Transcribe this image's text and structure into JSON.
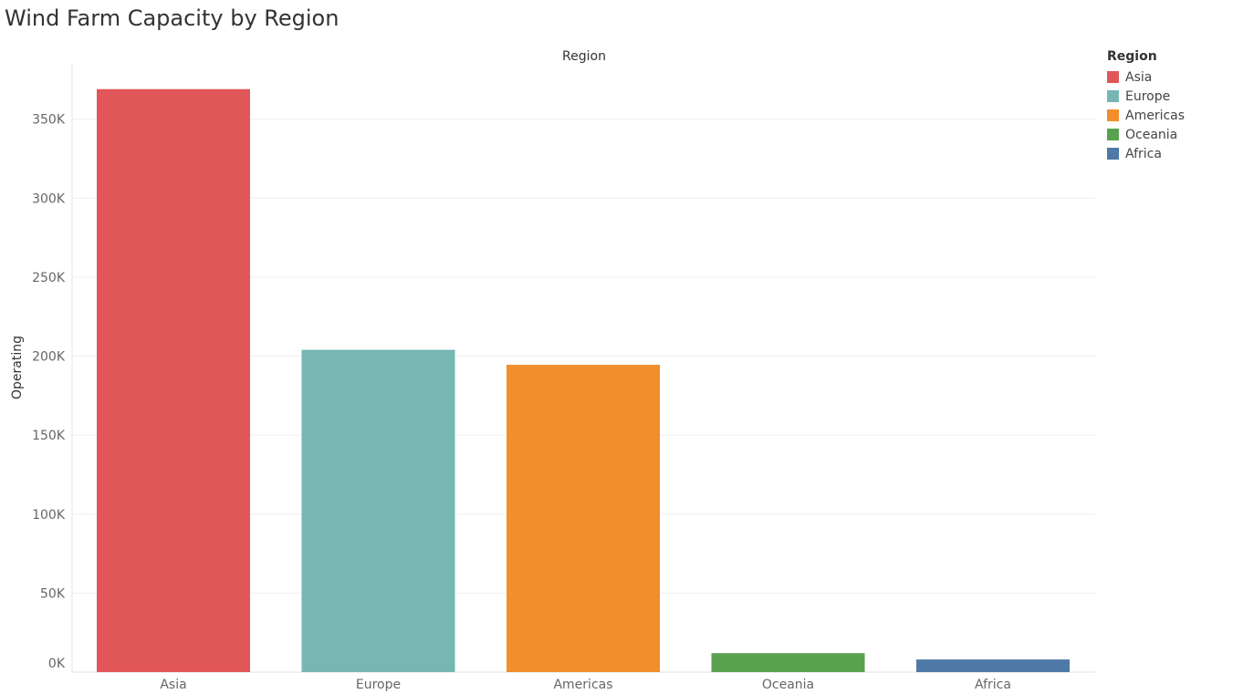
{
  "chart_data": {
    "type": "bar",
    "title": "Wind Farm Capacity by Region",
    "header_label": "Region",
    "xlabel": "",
    "ylabel": "Operating",
    "categories": [
      "Asia",
      "Europe",
      "Americas",
      "Oceania",
      "Africa"
    ],
    "values": [
      369000,
      204000,
      194500,
      12000,
      8000
    ],
    "colors": [
      "#E15759",
      "#76B7B2",
      "#F28E2B",
      "#59A14F",
      "#4E79A7"
    ],
    "ylim": [
      0,
      385000
    ],
    "yticks": [
      0,
      50000,
      100000,
      150000,
      200000,
      250000,
      300000,
      350000
    ],
    "ytick_labels": [
      "0K",
      "50K",
      "100K",
      "150K",
      "200K",
      "250K",
      "300K",
      "350K"
    ],
    "grid": true,
    "legend": {
      "title": "Region",
      "position": "right",
      "items": [
        {
          "label": "Asia",
          "color": "#E15759"
        },
        {
          "label": "Europe",
          "color": "#76B7B2"
        },
        {
          "label": "Americas",
          "color": "#F28E2B"
        },
        {
          "label": "Oceania",
          "color": "#59A14F"
        },
        {
          "label": "Africa",
          "color": "#4E79A7"
        }
      ]
    }
  }
}
